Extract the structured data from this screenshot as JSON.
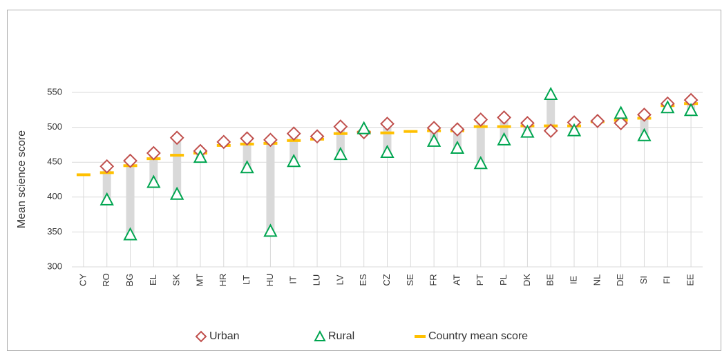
{
  "chart_data": {
    "type": "dot-range",
    "y_axis_label": "Mean science score",
    "categories": [
      "CY",
      "RO",
      "BG",
      "EL",
      "SK",
      "MT",
      "HR",
      "LT",
      "HU",
      "IT",
      "LU",
      "LV",
      "ES",
      "CZ",
      "SE",
      "FR",
      "AT",
      "PT",
      "PL",
      "DK",
      "BE",
      "IE",
      "NL",
      "DE",
      "SI",
      "FI",
      "EE"
    ],
    "series": [
      {
        "name": "Urban",
        "color": "#c0504d",
        "marker": "diamond",
        "values": [
          null,
          444,
          452,
          463,
          485,
          466,
          479,
          484,
          482,
          491,
          487,
          501,
          493,
          505,
          null,
          499,
          497,
          511,
          514,
          506,
          495,
          507,
          509,
          506,
          518,
          534,
          539
        ]
      },
      {
        "name": "Rural",
        "color": "#00a550",
        "marker": "triangle",
        "values": [
          null,
          396,
          346,
          421,
          404,
          457,
          null,
          442,
          351,
          451,
          null,
          461,
          498,
          464,
          null,
          480,
          470,
          448,
          482,
          493,
          547,
          495,
          null,
          520,
          488,
          528,
          524
        ]
      },
      {
        "name": "Country mean score",
        "color": "#ffc000",
        "marker": "dash",
        "values": [
          432,
          435,
          445,
          455,
          460,
          463,
          474,
          476,
          477,
          481,
          483,
          491,
          493,
          492,
          494,
          495,
          495,
          501,
          501,
          502,
          502,
          502,
          508,
          510,
          513,
          531,
          534
        ]
      }
    ],
    "range_color": "#d9d9d9",
    "ylim": [
      300,
      550
    ],
    "yticks": [
      300,
      350,
      400,
      450,
      500,
      550
    ],
    "grid": true,
    "legend": "bottom"
  }
}
